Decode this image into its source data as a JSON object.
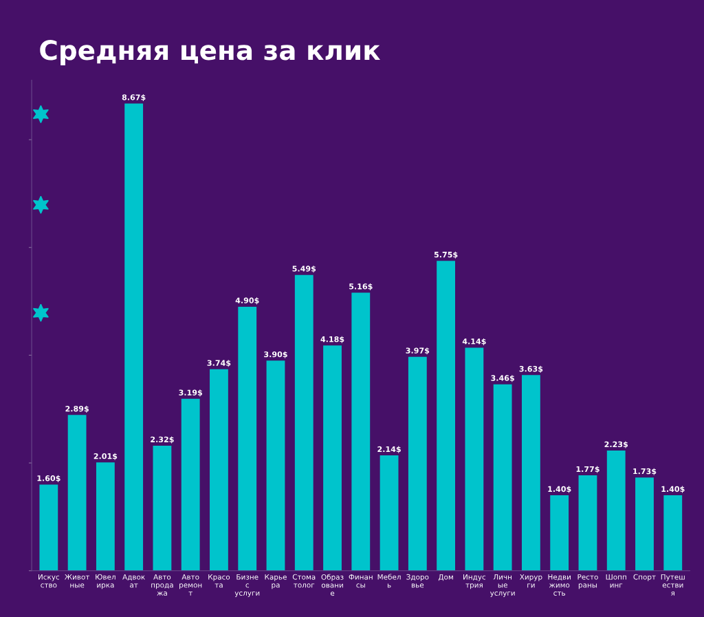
{
  "chart_data": {
    "type": "bar",
    "title": "Средняя цена за клик",
    "categories": [
      "Искус\nство",
      "Живот\nные",
      "Ювел\nирка",
      "Адвок\nат",
      "Авто\nпрода\nжа",
      "Авто\nремон\nт",
      "Красо\nта",
      "Бизне\nс\nуслуги",
      "Карье\nра",
      "Стома\nтолог",
      "Образ\nовани\nе",
      "Финан\nсы",
      "Мебел\nь",
      "Здоро\nвье",
      "Дом",
      "Индус\nтрия",
      "Личн\nые\nуслуги",
      "Хирур\nги",
      "Недви\nжимо\nсть",
      "Ресто\nраны",
      "Шопп\nинг",
      "Спорт",
      "Путеш\nестви\nя"
    ],
    "values": [
      1.6,
      2.89,
      2.01,
      8.67,
      2.32,
      3.19,
      3.74,
      4.9,
      3.9,
      5.49,
      4.18,
      5.16,
      2.14,
      3.97,
      5.75,
      4.14,
      3.46,
      3.63,
      1.4,
      1.77,
      2.23,
      1.73,
      1.4
    ],
    "value_labels": [
      "1.60$",
      "2.89$",
      "2.01$",
      "8.67$",
      "2.32$",
      "3.19$",
      "3.74$",
      "4.90$",
      "3.90$",
      "5.49$",
      "4.18$",
      "5.16$",
      "2.14$",
      "3.97$",
      "5.75$",
      "4.14$",
      "3.46$",
      "3.63$",
      "1.40$",
      "1.77$",
      "2.23$",
      "1.73$",
      "1.40$"
    ],
    "color": "#00c4cc",
    "tick_labels": "x",
    "grid": false,
    "legend": false
  }
}
